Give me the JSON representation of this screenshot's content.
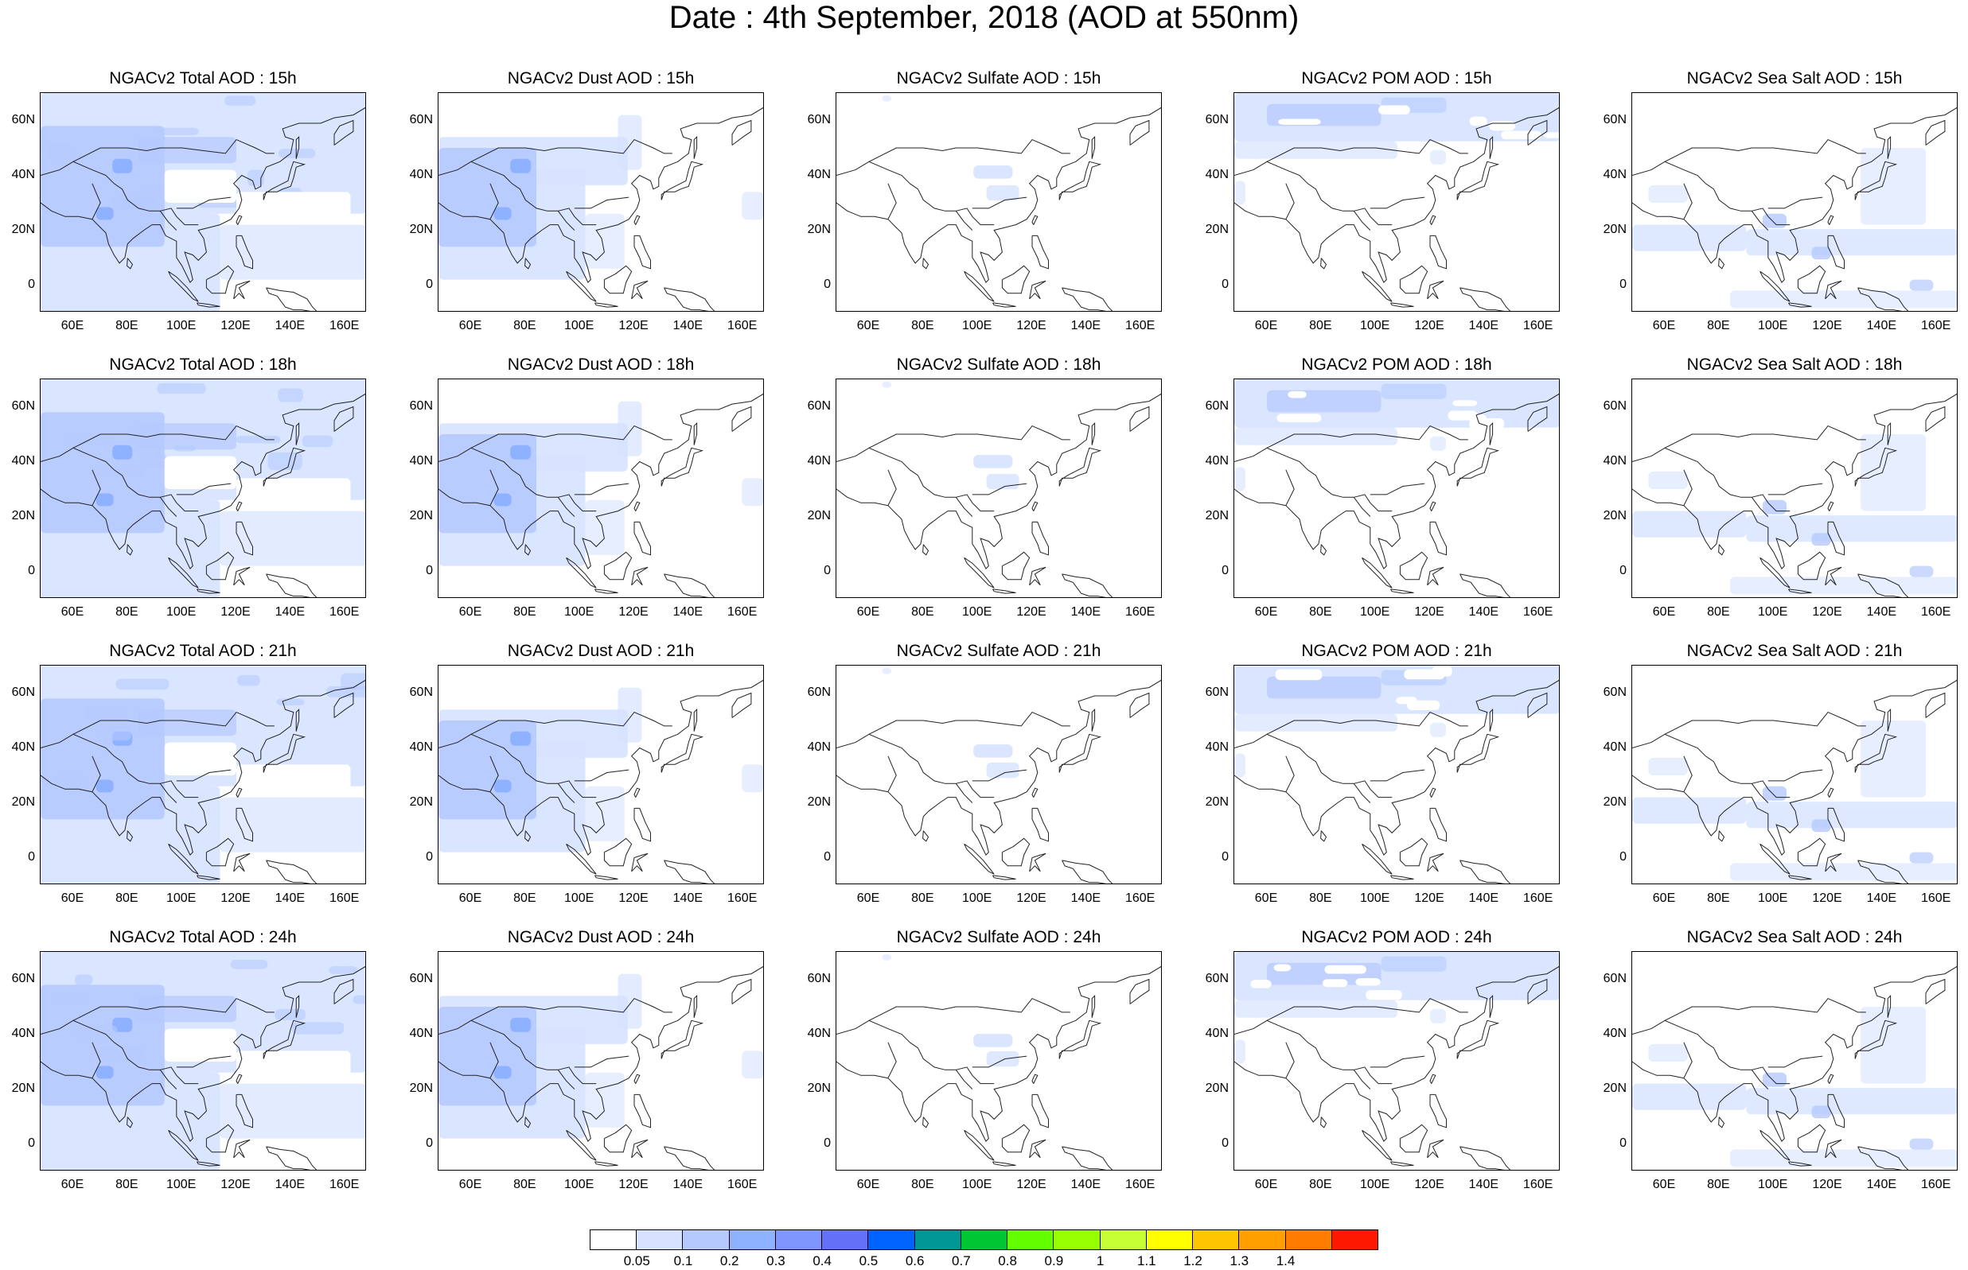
{
  "title": "Date : 4th September, 2018 (AOD at 550nm)",
  "rows": [
    {
      "hour": "15h",
      "titles": [
        "NGACv2 Total AOD : 15h",
        "NGACv2 Dust AOD : 15h",
        "NGACv2 Sulfate AOD : 15h",
        "NGACv2 POM AOD : 15h",
        "NGACv2 Sea Salt AOD : 15h"
      ]
    },
    {
      "hour": "18h",
      "titles": [
        "NGACv2 Total AOD : 18h",
        "NGACv2 Dust AOD : 18h",
        "NGACv2 Sulfate AOD : 18h",
        "NGACv2 POM AOD : 18h",
        "NGACv2 Sea Salt AOD : 18h"
      ]
    },
    {
      "hour": "21h",
      "titles": [
        "NGACv2 Total AOD : 21h",
        "NGACv2 Dust AOD : 21h",
        "NGACv2 Sulfate AOD : 21h",
        "NGACv2 POM AOD : 21h",
        "NGACv2 Sea Salt AOD : 21h"
      ]
    },
    {
      "hour": "24h",
      "titles": [
        "NGACv2 Total AOD : 24h",
        "NGACv2 Dust AOD : 24h",
        "NGACv2 Sulfate AOD : 24h",
        "NGACv2 POM AOD : 24h",
        "NGACv2 Sea Salt  AOD : 24h"
      ]
    }
  ],
  "columns": [
    "total",
    "dust",
    "sulfate",
    "pom",
    "seasalt"
  ],
  "lat_labels": [
    "60N",
    "40N",
    "20N",
    "0"
  ],
  "lon_labels": [
    "60E",
    "80E",
    "100E",
    "120E",
    "140E",
    "160E"
  ],
  "lat_values": [
    60,
    40,
    20,
    0
  ],
  "lon_values": [
    60,
    80,
    100,
    120,
    140,
    160
  ],
  "map_extent": {
    "lon": [
      48,
      168
    ],
    "lat": [
      -10,
      70
    ]
  },
  "colorbar": {
    "labels": [
      "0.05",
      "0.1",
      "0.2",
      "0.3",
      "0.4",
      "0.5",
      "0.6",
      "0.7",
      "0.8",
      "0.9",
      "1",
      "1.1",
      "1.2",
      "1.3",
      "1.4"
    ],
    "colors": [
      "#ffffff",
      "#d6e2ff",
      "#b5c9ff",
      "#8eb2ff",
      "#7f96ff",
      "#6370f8",
      "#0063ff",
      "#009696",
      "#00c633",
      "#63ff00",
      "#96ff00",
      "#c6ff33",
      "#ffff00",
      "#ffc600",
      "#ffa000",
      "#ff7c00",
      "#ff1900"
    ]
  },
  "aerosol_fields": {
    "total": {
      "levels": [
        "#d6e2ff",
        "#b5c9ff",
        "#8eb2ff"
      ]
    },
    "dust": {
      "levels": [
        "#d6e2ff",
        "#b5c9ff",
        "#8eb2ff"
      ]
    },
    "sulfate": {
      "levels": [
        "#d6e2ff"
      ]
    },
    "pom": {
      "levels": [
        "#d6e2ff",
        "#b5c9ff"
      ]
    },
    "seasalt": {
      "levels": [
        "#d6e2ff",
        "#b5c9ff"
      ]
    }
  }
}
